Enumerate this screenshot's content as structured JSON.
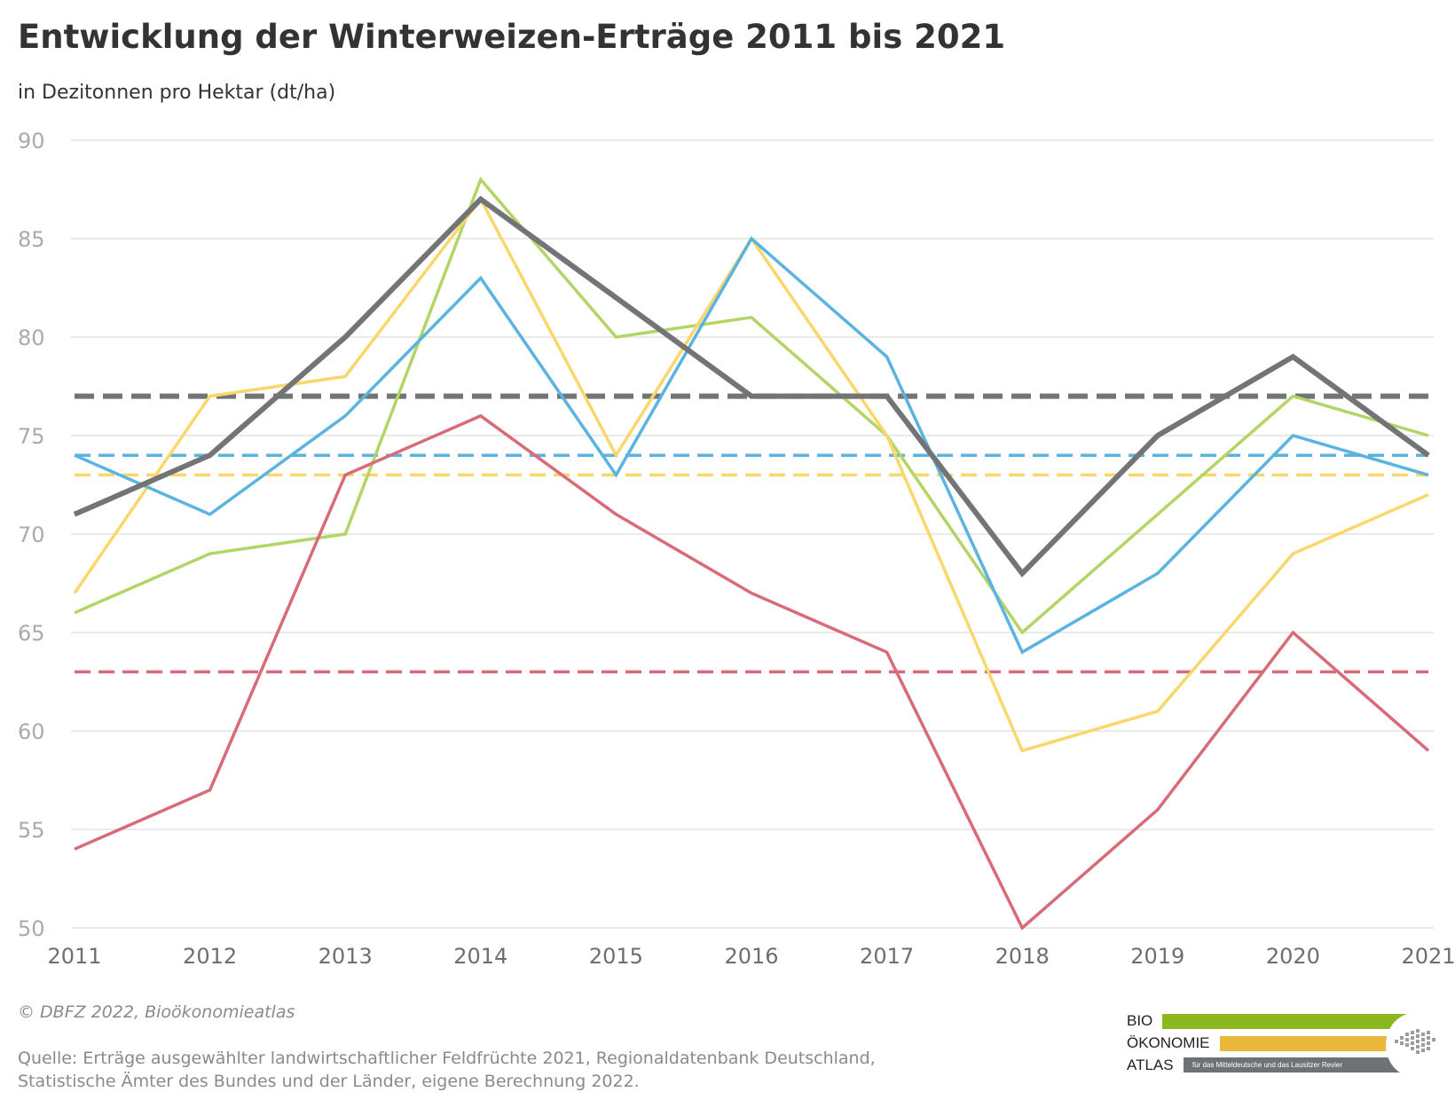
{
  "header": {
    "title": "Entwicklung der Winterweizen-Erträge 2011 bis 2021",
    "subtitle": "in Dezitonnen pro Hektar (dt/ha)"
  },
  "chart_data": {
    "type": "line",
    "title": "Entwicklung der Winterweizen-Erträge 2011 bis 2021",
    "subtitle": "in Dezitonnen pro Hektar (dt/ha)",
    "x": [
      "2011",
      "2012",
      "2013",
      "2014",
      "2015",
      "2016",
      "2017",
      "2018",
      "2019",
      "2020",
      "2021"
    ],
    "ylim": [
      50,
      90
    ],
    "yticks": [
      50,
      55,
      60,
      65,
      70,
      75,
      80,
      85,
      90
    ],
    "grid": true,
    "legend": "none",
    "series": [
      {
        "color": "#b3d565",
        "width": 3.5,
        "values": [
          66,
          69,
          70,
          88,
          80,
          81,
          75,
          65,
          71,
          77,
          75
        ]
      },
      {
        "color": "#f9d76a",
        "width": 3.5,
        "values": [
          67,
          77,
          78,
          87,
          74,
          85,
          75,
          59,
          61,
          69,
          72
        ]
      },
      {
        "color": "#5ab3e0",
        "width": 3.5,
        "values": [
          74,
          71,
          76,
          83,
          73,
          85,
          79,
          64,
          68,
          75,
          73
        ]
      },
      {
        "color": "#d96b79",
        "width": 3.5,
        "values": [
          54,
          57,
          73,
          76,
          71,
          67,
          64,
          50,
          56,
          65,
          59
        ]
      },
      {
        "color": "#727476",
        "width": 6,
        "values": [
          71,
          74,
          80,
          87,
          82,
          77,
          77,
          68,
          75,
          79,
          74
        ]
      }
    ],
    "reference_lines": [
      {
        "color": "#727476",
        "width": 6,
        "value": 77
      },
      {
        "color": "#5ab3e0",
        "width": 3.5,
        "value": 74
      },
      {
        "color": "#f9d76a",
        "width": 3.5,
        "value": 73
      },
      {
        "color": "#d96b79",
        "width": 3.5,
        "value": 63
      }
    ],
    "tick_color": "#aaaaaa",
    "xtick_color": "#6e6e6e",
    "grid_color": "#e3e3e3"
  },
  "footer": {
    "copyright": "© DBFZ 2022, Bioökonomieatlas",
    "source_line1": "Quelle: Erträge ausgewählter landwirtschaftlicher Feldfrüchte 2021, Regionaldatenbank Deutschland,",
    "source_line2": "Statistische Ämter des Bundes und der Länder, eigene Berechnung 2022."
  },
  "logo": {
    "word1": "BIO",
    "word2": "ÖKONOMIE",
    "word3": "ATLAS",
    "tagline": "für das Mitteldeutsche und das Lausitzer Revier",
    "color1": "#8cb81e",
    "color2": "#e9b73a",
    "color3": "#6f7274",
    "icon": "map-region-icon"
  }
}
